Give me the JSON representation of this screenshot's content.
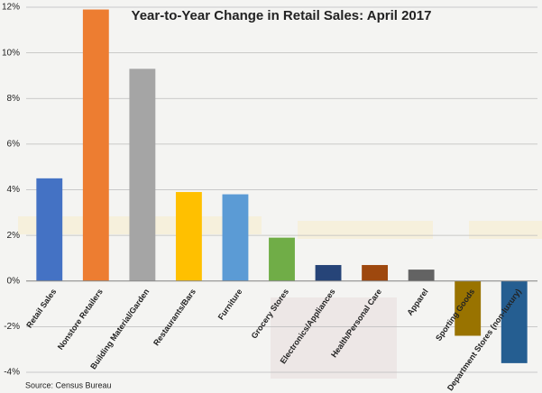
{
  "chart_data": {
    "type": "bar",
    "title": "Year-to-Year Change in Retail Sales: April 2017",
    "categories": [
      "Retail Sales",
      "Nonstore Retailers",
      "Building Material/Garden",
      "Restaurants/Bars",
      "Furniture",
      "Grocery Stores",
      "Electronics/Appliances",
      "Health/Personal Care",
      "Apparel",
      "Sporting Goods",
      "Department Stores (non-luxury)"
    ],
    "values": [
      4.5,
      11.9,
      9.3,
      3.9,
      3.8,
      1.9,
      0.7,
      0.7,
      0.5,
      -2.4,
      -3.6
    ],
    "colors": [
      "#4472c4",
      "#ed7d31",
      "#a5a5a5",
      "#ffc000",
      "#5b9bd5",
      "#70ad47",
      "#264478",
      "#9e480e",
      "#636363",
      "#997300",
      "#255e91"
    ],
    "ylim": [
      -4,
      12
    ],
    "yticks": [
      {
        "value": -4,
        "label": "-4%"
      },
      {
        "value": -2,
        "label": "-2%"
      },
      {
        "value": 0,
        "label": "0%"
      },
      {
        "value": 2,
        "label": "2%"
      },
      {
        "value": 4,
        "label": "4%"
      },
      {
        "value": 6,
        "label": "6%"
      },
      {
        "value": 8,
        "label": "8%"
      },
      {
        "value": 10,
        "label": "10%"
      },
      {
        "value": 12,
        "label": "12%"
      }
    ],
    "grid": true,
    "source": "Source: Census Bureau"
  }
}
